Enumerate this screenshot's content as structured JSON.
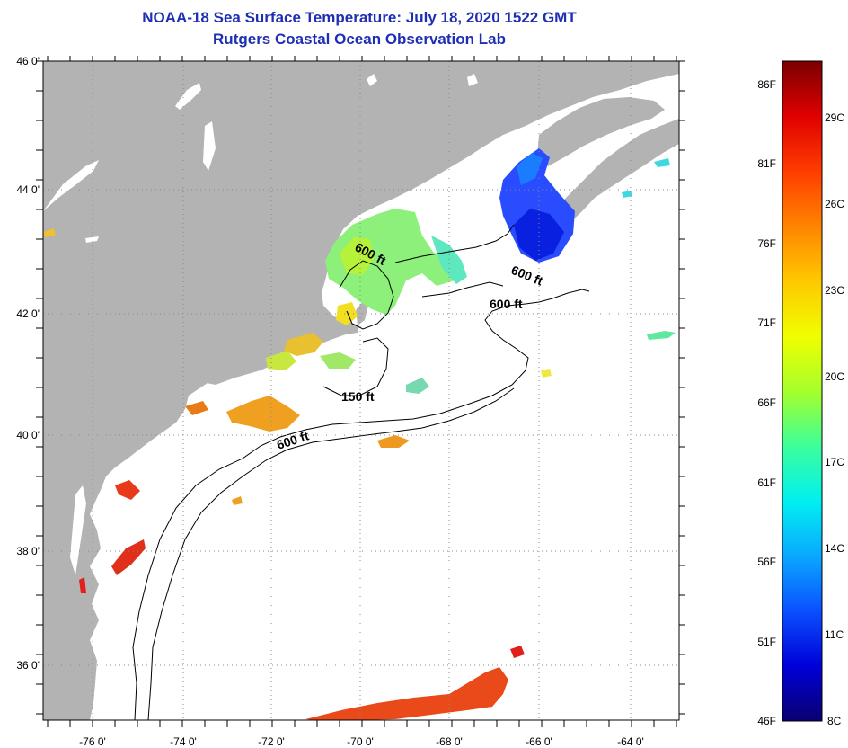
{
  "title": {
    "line1": "NOAA-18 Sea Surface Temperature:  July 18, 2020 1522 GMT",
    "line2": "Rutgers Coastal Ocean Observation Lab"
  },
  "map": {
    "lat_labels": [
      "46 0'",
      "44 0'",
      "42 0'",
      "40 0'",
      "38 0'",
      "36 0'"
    ],
    "lon_labels": [
      "-76 0'",
      "-74 0'",
      "-72 0'",
      "-70 0'",
      "-68 0'",
      "-66 0'",
      "-64 0'"
    ],
    "contour_labels": [
      "600 ft",
      "600 ft",
      "600 ft",
      "150 ft",
      "600 ft"
    ]
  },
  "colorbar": {
    "fahrenheit_labels": [
      "86F",
      "81F",
      "76F",
      "71F",
      "66F",
      "61F",
      "56F",
      "51F",
      "46F"
    ],
    "celsius_labels": [
      "29C",
      "26C",
      "23C",
      "20C",
      "17C",
      "14C",
      "11C",
      "8C"
    ],
    "colors": [
      "#0a0070",
      "#0000d8",
      "#0a50ff",
      "#0aa8ff",
      "#00f0f0",
      "#3cff9a",
      "#a6ff2a",
      "#f0ff00",
      "#ffc800",
      "#ff8400",
      "#ff3c00",
      "#e00000",
      "#7a0000"
    ]
  },
  "colors": {
    "land": "#b3b3b3",
    "ocean": "#ffffff",
    "title": "#1f2fb3"
  }
}
